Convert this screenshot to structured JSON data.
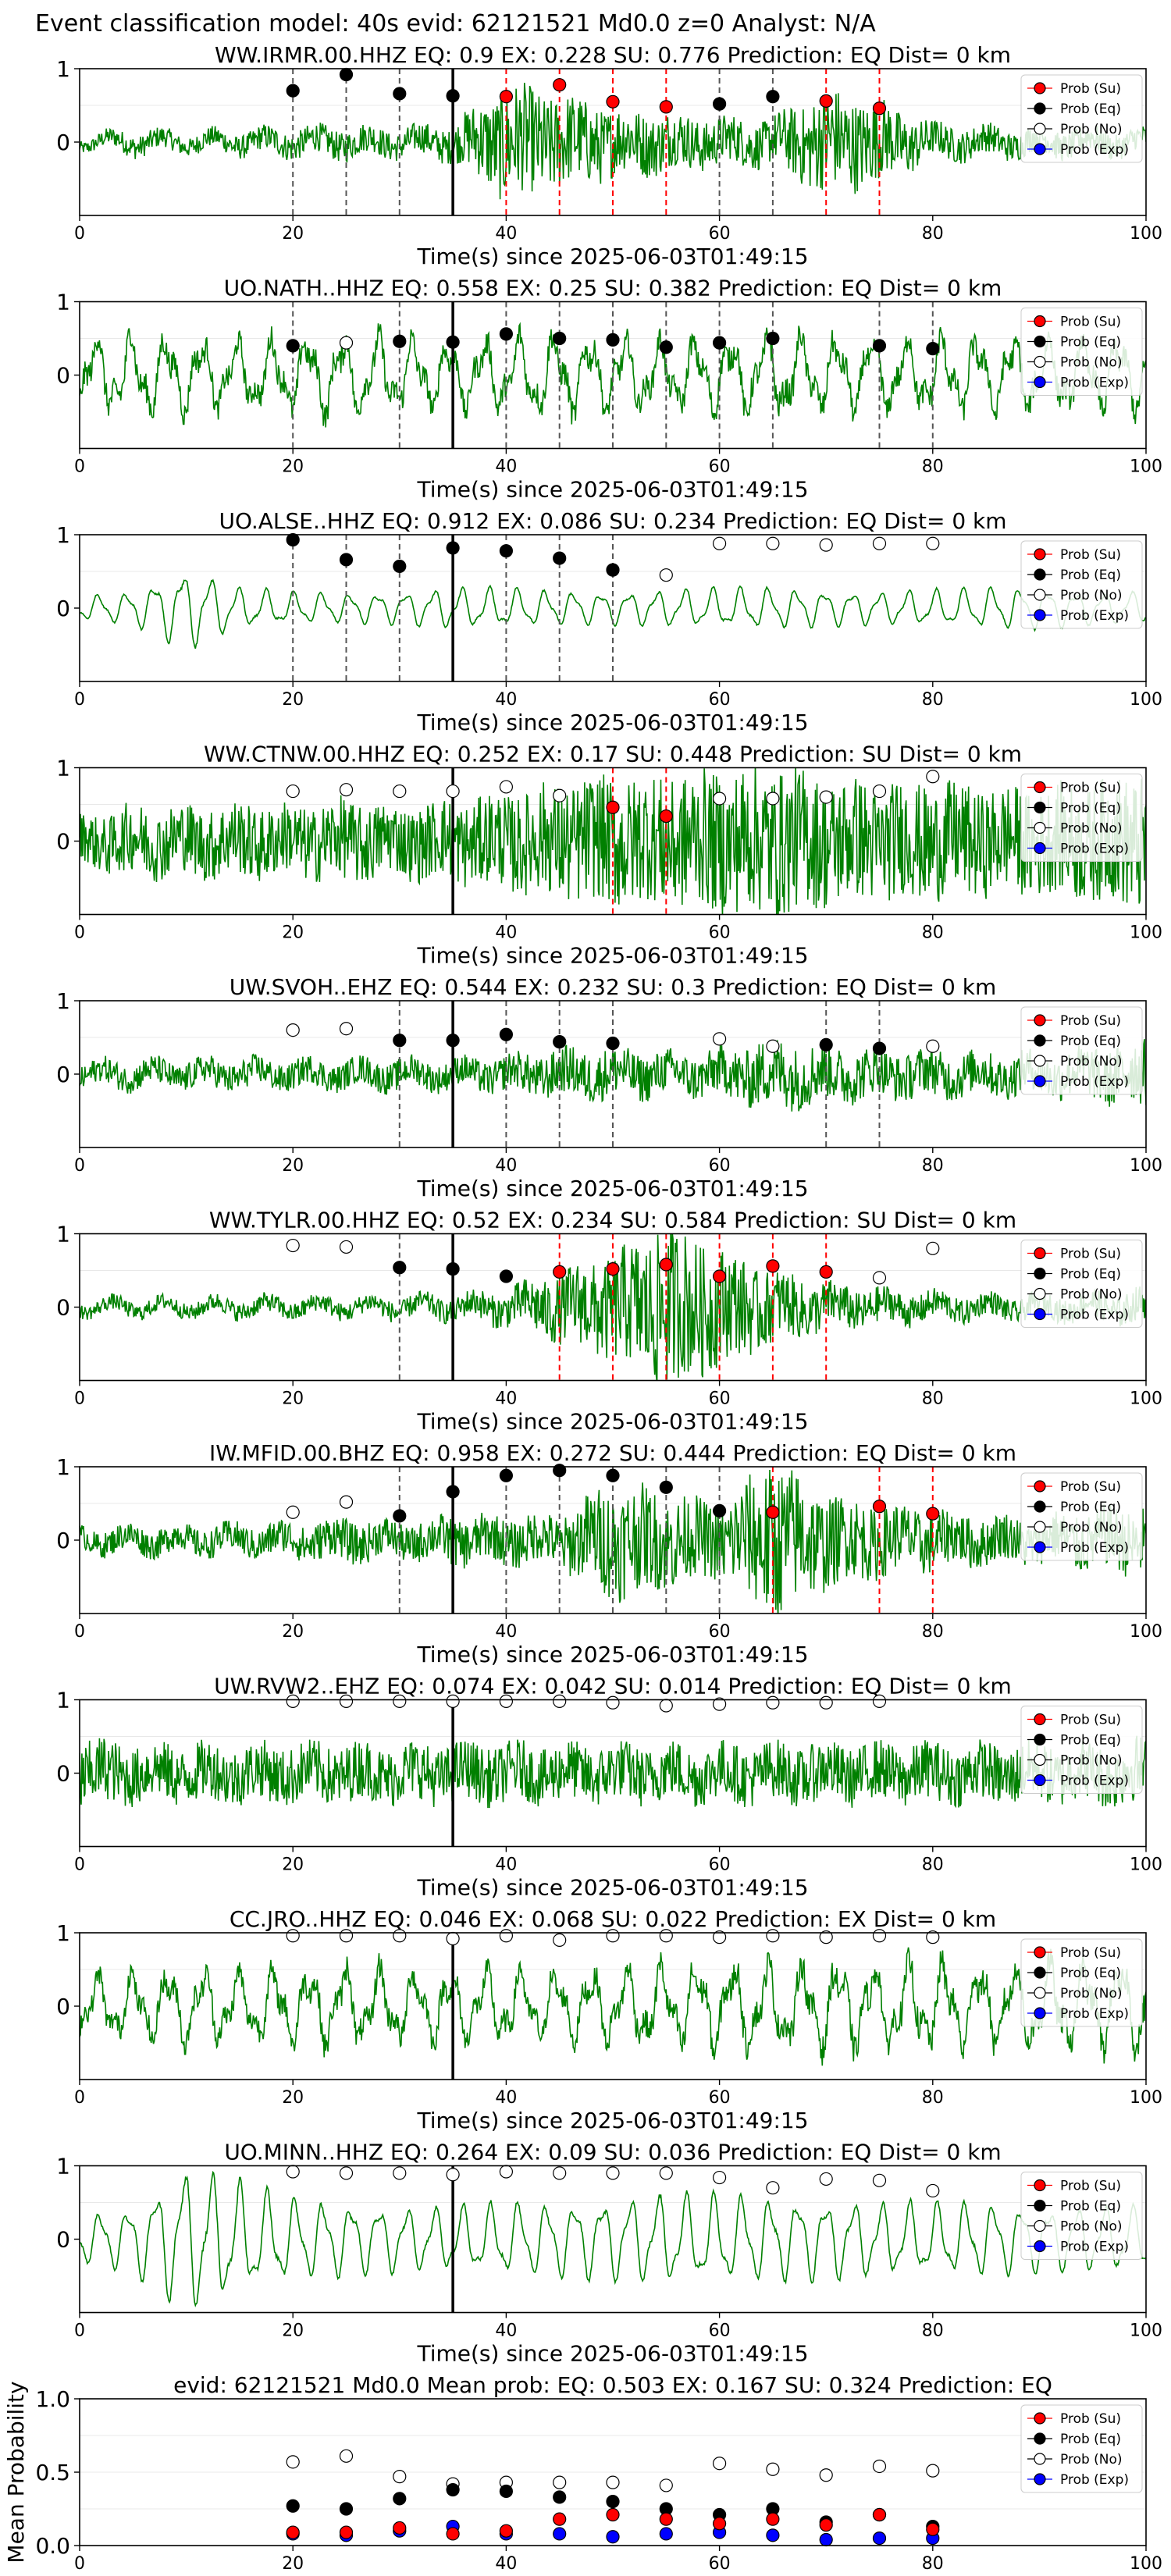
{
  "figure": {
    "suptitle": "Event classification model: 40s evid: 62121521 Md0.0 z=0 Analyst: N/A",
    "xlabel": "Time(s) since 2025-06-03T01:49:15",
    "colors": {
      "waveform": "#008000",
      "su": "#ff0000",
      "eq": "#000000",
      "no": "#ffffff",
      "exp": "#0000ff",
      "eq_line": "#555555",
      "su_line": "#ff0000",
      "pick_line": "#000000"
    }
  },
  "legend": [
    "Prob (Su)",
    "Prob (Eq)",
    "Prob (No)",
    "Prob (Exp)"
  ],
  "chart_data": [
    {
      "type": "line",
      "title": "WW.IRMR.00.HHZ   EQ: 0.9  EX: 0.228  SU: 0.776   Prediction: EQ    Dist= 0 km",
      "xlabel": "Time(s) since 2025-06-03T01:49:15",
      "xlim": [
        0,
        100
      ],
      "ylim": [
        -1,
        1
      ],
      "xticks": [
        "0",
        "20",
        "40",
        "60",
        "80",
        "100"
      ],
      "yticks": [
        "1",
        "0"
      ],
      "pick_time": 35,
      "waveform": {
        "style": "noisy",
        "amps": [
          0.05,
          0.1,
          0.08,
          0.1,
          0.12,
          0.13,
          0.12,
          0.15,
          0.5,
          0.4,
          0.3,
          0.25,
          0.2,
          0.2,
          0.45,
          0.35,
          0.15,
          0.13,
          0.12,
          0.12,
          0.1
        ]
      },
      "probs": {
        "t": [
          20,
          25,
          30,
          35,
          40,
          45,
          50,
          55,
          60,
          65,
          70,
          75
        ],
        "su": [
          null,
          null,
          null,
          null,
          0.62,
          0.78,
          0.55,
          0.48,
          null,
          null,
          0.56,
          0.46
        ],
        "eq": [
          0.7,
          0.92,
          0.66,
          0.63,
          null,
          null,
          null,
          null,
          0.52,
          0.62,
          null,
          null
        ]
      },
      "vlines_eq": [
        20,
        25,
        30,
        35,
        60,
        65
      ],
      "vlines_su": [
        40,
        45,
        50,
        55,
        70,
        75
      ]
    },
    {
      "type": "line",
      "title": "UO.NATH..HHZ   EQ: 0.558  EX: 0.25  SU: 0.382   Prediction: EQ    Dist= 0 km",
      "xlabel": "Time(s) since 2025-06-03T01:49:15",
      "xlim": [
        0,
        100
      ],
      "ylim": [
        -1,
        1
      ],
      "xticks": [
        "0",
        "20",
        "40",
        "60",
        "80",
        "100"
      ],
      "yticks": [
        "1",
        "0"
      ],
      "pick_time": 35,
      "waveform": {
        "style": "wavy",
        "amps": [
          0.5,
          0.55,
          0.5,
          0.45,
          0.5,
          0.55,
          0.5,
          0.45,
          0.5,
          0.55,
          0.5,
          0.45,
          0.5,
          0.55,
          0.5,
          0.5,
          0.5,
          0.5,
          0.5,
          0.45,
          0.5
        ]
      },
      "probs": {
        "t": [
          20,
          25,
          30,
          35,
          40,
          45,
          50,
          55,
          60,
          65,
          75,
          80
        ],
        "su": [
          null,
          null,
          null,
          null,
          null,
          null,
          null,
          null,
          null,
          null,
          null,
          null
        ],
        "eq": [
          0.4,
          null,
          0.46,
          0.45,
          0.56,
          0.5,
          0.48,
          0.38,
          0.44,
          0.5,
          0.4,
          0.36
        ],
        "no": [
          null,
          0.44,
          null,
          null,
          null,
          null,
          null,
          null,
          null,
          null,
          null,
          null
        ]
      },
      "vlines_eq": [
        20,
        30,
        40,
        45,
        50,
        55,
        60,
        65,
        75,
        80
      ],
      "vlines_su": []
    },
    {
      "type": "line",
      "title": "UO.ALSE..HHZ   EQ: 0.912  EX: 0.086  SU: 0.234   Prediction: EQ    Dist= 0 km",
      "xlabel": "Time(s) since 2025-06-03T01:49:15",
      "xlim": [
        0,
        100
      ],
      "ylim": [
        -1,
        1
      ],
      "xticks": [
        "0",
        "20",
        "40",
        "60",
        "80",
        "100"
      ],
      "yticks": [
        "1",
        "0"
      ],
      "pick_time": 35,
      "waveform": {
        "style": "smooth",
        "amps": [
          0.15,
          0.2,
          0.5,
          0.25,
          0.2,
          0.18,
          0.2,
          0.25,
          0.25,
          0.2,
          0.2,
          0.22,
          0.25,
          0.25,
          0.22,
          0.2,
          0.22,
          0.25,
          0.25,
          0.2,
          0.2
        ]
      },
      "probs": {
        "t": [
          20,
          25,
          30,
          35,
          40,
          45,
          50,
          55,
          60,
          65,
          70,
          75,
          80
        ],
        "eq": [
          0.93,
          0.66,
          0.57,
          0.82,
          0.78,
          0.68,
          0.52,
          null,
          null,
          null,
          null,
          null,
          null
        ],
        "no": [
          null,
          null,
          null,
          null,
          null,
          null,
          null,
          0.45,
          0.88,
          0.88,
          0.86,
          0.88,
          0.88
        ]
      },
      "vlines_eq": [
        20,
        25,
        30,
        35,
        40,
        45,
        50
      ],
      "vlines_su": []
    },
    {
      "type": "line",
      "title": "WW.CTNW.00.HHZ   EQ: 0.252  EX: 0.17  SU: 0.448   Prediction: SU    Dist= 0 km",
      "xlabel": "Time(s) since 2025-06-03T01:49:15",
      "xlim": [
        0,
        100
      ],
      "ylim": [
        -1,
        1
      ],
      "xticks": [
        "0",
        "20",
        "40",
        "60",
        "80",
        "100"
      ],
      "yticks": [
        "1",
        "0"
      ],
      "pick_time": 35,
      "waveform": {
        "style": "noisy",
        "amps": [
          0.2,
          0.3,
          0.3,
          0.32,
          0.3,
          0.35,
          0.3,
          0.35,
          0.4,
          0.5,
          0.55,
          0.55,
          0.6,
          0.65,
          0.55,
          0.5,
          0.5,
          0.45,
          0.45,
          0.5,
          0.6
        ]
      },
      "probs": {
        "t": [
          20,
          25,
          30,
          35,
          40,
          45,
          50,
          55,
          60,
          65,
          70,
          75,
          80
        ],
        "su": [
          null,
          null,
          null,
          null,
          null,
          null,
          0.46,
          0.34,
          null,
          null,
          null,
          null,
          null
        ],
        "no": [
          0.68,
          0.7,
          0.68,
          0.68,
          0.74,
          0.62,
          null,
          null,
          0.58,
          0.58,
          0.6,
          0.68,
          0.88
        ]
      },
      "vlines_eq": [],
      "vlines_su": [
        50,
        55
      ]
    },
    {
      "type": "line",
      "title": "UW.SVOH..EHZ   EQ: 0.544  EX: 0.232  SU: 0.3   Prediction: EQ    Dist= 0 km",
      "xlabel": "Time(s) since 2025-06-03T01:49:15",
      "xlim": [
        0,
        100
      ],
      "ylim": [
        -1,
        1
      ],
      "xticks": [
        "0",
        "20",
        "40",
        "60",
        "80",
        "100"
      ],
      "yticks": [
        "1",
        "0"
      ],
      "pick_time": 35,
      "waveform": {
        "style": "noisy",
        "amps": [
          0.1,
          0.12,
          0.12,
          0.13,
          0.12,
          0.12,
          0.13,
          0.12,
          0.15,
          0.2,
          0.22,
          0.18,
          0.2,
          0.3,
          0.25,
          0.2,
          0.2,
          0.18,
          0.18,
          0.22,
          0.3
        ]
      },
      "probs": {
        "t": [
          20,
          25,
          30,
          35,
          40,
          45,
          50,
          60,
          65,
          70,
          75,
          80
        ],
        "eq": [
          null,
          null,
          0.46,
          0.46,
          0.54,
          0.44,
          0.42,
          null,
          null,
          0.4,
          0.35,
          null
        ],
        "no": [
          0.6,
          0.62,
          null,
          null,
          null,
          null,
          null,
          0.48,
          0.38,
          null,
          null,
          0.38
        ]
      },
      "vlines_eq": [
        30,
        35,
        40,
        45,
        50,
        70,
        75
      ],
      "vlines_su": []
    },
    {
      "type": "line",
      "title": "WW.TYLR.00.HHZ   EQ: 0.52  EX: 0.234  SU: 0.584   Prediction: SU    Dist= 0 km",
      "xlabel": "Time(s) since 2025-06-03T01:49:15",
      "xlim": [
        0,
        100
      ],
      "ylim": [
        -1,
        1
      ],
      "xticks": [
        "0",
        "20",
        "40",
        "60",
        "80",
        "100"
      ],
      "yticks": [
        "1",
        "0"
      ],
      "pick_time": 35,
      "waveform": {
        "style": "noisy",
        "amps": [
          0.06,
          0.07,
          0.07,
          0.08,
          0.08,
          0.08,
          0.09,
          0.1,
          0.15,
          0.3,
          0.45,
          0.7,
          0.5,
          0.3,
          0.2,
          0.15,
          0.12,
          0.1,
          0.1,
          0.12,
          0.15
        ]
      },
      "probs": {
        "t": [
          20,
          25,
          30,
          35,
          40,
          45,
          50,
          55,
          60,
          65,
          70,
          75,
          80
        ],
        "su": [
          null,
          null,
          null,
          null,
          null,
          0.48,
          0.52,
          0.58,
          0.42,
          0.56,
          0.48,
          null,
          null
        ],
        "eq": [
          null,
          null,
          0.54,
          0.52,
          0.42,
          null,
          null,
          null,
          null,
          null,
          null,
          null,
          null
        ],
        "no": [
          0.84,
          0.82,
          null,
          null,
          null,
          null,
          null,
          null,
          null,
          null,
          null,
          0.4,
          0.8
        ]
      },
      "vlines_eq": [
        30,
        35
      ],
      "vlines_su": [
        45,
        50,
        55,
        60,
        65,
        70
      ]
    },
    {
      "type": "line",
      "title": "IW.MFID.00.BHZ   EQ: 0.958  EX: 0.272  SU: 0.444   Prediction: EQ    Dist= 0 km",
      "xlabel": "Time(s) since 2025-06-03T01:49:15",
      "xlim": [
        0,
        100
      ],
      "ylim": [
        -1,
        1
      ],
      "xticks": [
        "0",
        "20",
        "40",
        "60",
        "80",
        "100"
      ],
      "yticks": [
        "1",
        "0"
      ],
      "pick_time": 35,
      "waveform": {
        "style": "noisy",
        "amps": [
          0.1,
          0.12,
          0.12,
          0.13,
          0.15,
          0.18,
          0.15,
          0.2,
          0.2,
          0.22,
          0.5,
          0.4,
          0.3,
          0.7,
          0.4,
          0.3,
          0.25,
          0.2,
          0.2,
          0.25,
          0.3
        ]
      },
      "probs": {
        "t": [
          20,
          25,
          30,
          35,
          40,
          45,
          50,
          55,
          60,
          65,
          75,
          80
        ],
        "su": [
          null,
          null,
          null,
          null,
          null,
          null,
          null,
          null,
          null,
          0.38,
          0.46,
          0.36
        ],
        "eq": [
          null,
          null,
          0.33,
          0.66,
          0.88,
          0.95,
          0.88,
          0.72,
          0.4,
          null,
          null,
          null
        ],
        "no": [
          0.38,
          0.52,
          null,
          null,
          null,
          null,
          null,
          null,
          null,
          null,
          null,
          null
        ]
      },
      "vlines_eq": [
        30,
        35,
        40,
        45,
        50,
        55,
        60
      ],
      "vlines_su": [
        65,
        75,
        80
      ]
    },
    {
      "type": "line",
      "title": "UW.RVW2..EHZ   EQ: 0.074  EX: 0.042  SU: 0.014   Prediction: EQ    Dist= 0 km",
      "xlabel": "Time(s) since 2025-06-03T01:49:15",
      "xlim": [
        0,
        100
      ],
      "ylim": [
        -1,
        1
      ],
      "xticks": [
        "0",
        "20",
        "40",
        "60",
        "80",
        "100"
      ],
      "yticks": [
        "1",
        "0"
      ],
      "pick_time": 35,
      "waveform": {
        "style": "noisy",
        "amps": [
          0.3,
          0.25,
          0.25,
          0.25,
          0.25,
          0.25,
          0.25,
          0.25,
          0.25,
          0.25,
          0.25,
          0.25,
          0.25,
          0.25,
          0.25,
          0.25,
          0.25,
          0.25,
          0.25,
          0.25,
          0.3
        ]
      },
      "probs": {
        "t": [
          20,
          25,
          30,
          35,
          40,
          45,
          50,
          55,
          60,
          65,
          70,
          75
        ],
        "no": [
          0.98,
          0.98,
          0.98,
          0.98,
          0.98,
          0.98,
          0.96,
          0.92,
          0.94,
          0.96,
          0.96,
          0.98
        ]
      },
      "vlines_eq": [],
      "vlines_su": []
    },
    {
      "type": "line",
      "title": "CC.JRO..HHZ   EQ: 0.046  EX: 0.068  SU: 0.022   Prediction: EX    Dist= 0 km",
      "xlabel": "Time(s) since 2025-06-03T01:49:15",
      "xlim": [
        0,
        100
      ],
      "ylim": [
        -1,
        1
      ],
      "xticks": [
        "0",
        "20",
        "40",
        "60",
        "80",
        "100"
      ],
      "yticks": [
        "1",
        "0"
      ],
      "pick_time": 35,
      "waveform": {
        "style": "wavy",
        "amps": [
          0.4,
          0.45,
          0.5,
          0.45,
          0.5,
          0.55,
          0.5,
          0.45,
          0.5,
          0.45,
          0.5,
          0.55,
          0.6,
          0.55,
          0.6,
          0.55,
          0.6,
          0.55,
          0.6,
          0.55,
          0.6
        ]
      },
      "probs": {
        "t": [
          20,
          25,
          30,
          35,
          40,
          45,
          50,
          55,
          60,
          65,
          70,
          75,
          80
        ],
        "no": [
          0.96,
          0.96,
          0.96,
          0.92,
          0.96,
          0.9,
          0.96,
          0.96,
          0.94,
          0.96,
          0.94,
          0.96,
          0.94
        ]
      },
      "vlines_eq": [],
      "vlines_su": []
    },
    {
      "type": "line",
      "title": "UO.MINN..HHZ   EQ: 0.264  EX: 0.09  SU: 0.036   Prediction: EQ    Dist= 0 km",
      "xlabel": "Time(s) since 2025-06-03T01:49:15",
      "xlim": [
        0,
        100
      ],
      "ylim": [
        -1,
        1
      ],
      "xticks": [
        "0",
        "20",
        "40",
        "60",
        "80",
        "100"
      ],
      "yticks": [
        "1",
        "0"
      ],
      "pick_time": 35,
      "waveform": {
        "style": "smooth",
        "amps": [
          0.3,
          0.4,
          0.9,
          0.7,
          0.5,
          0.45,
          0.4,
          0.4,
          0.45,
          0.45,
          0.5,
          0.55,
          0.55,
          0.5,
          0.5,
          0.45,
          0.45,
          0.45,
          0.4,
          0.4,
          0.4
        ]
      },
      "probs": {
        "t": [
          20,
          25,
          30,
          35,
          40,
          45,
          50,
          55,
          60,
          65,
          70,
          75,
          80
        ],
        "no": [
          0.92,
          0.9,
          0.9,
          0.88,
          0.92,
          0.9,
          0.9,
          0.9,
          0.84,
          0.7,
          0.82,
          0.8,
          0.66
        ]
      },
      "vlines_eq": [],
      "vlines_su": []
    },
    {
      "type": "scatter",
      "title": "evid: 62121521  Md0.0   Mean prob:   EQ: 0.503  EX: 0.167  SU: 0.324   Prediction: EQ",
      "xlabel": "",
      "ylabel": "Mean Probability",
      "xlim": [
        0,
        100
      ],
      "ylim": [
        0,
        1
      ],
      "xticks": [
        "0",
        "20",
        "40",
        "60",
        "80",
        "100"
      ],
      "yticks": [
        "0.0",
        "0.5",
        "1.0"
      ],
      "probs": {
        "t": [
          20,
          25,
          30,
          35,
          40,
          45,
          50,
          55,
          60,
          65,
          70,
          75,
          80
        ],
        "no": [
          0.57,
          0.61,
          0.47,
          0.42,
          0.43,
          0.43,
          0.43,
          0.41,
          0.56,
          0.52,
          0.48,
          0.54,
          0.51
        ],
        "eq": [
          0.27,
          0.25,
          0.32,
          0.38,
          0.37,
          0.33,
          0.3,
          0.25,
          0.21,
          0.25,
          0.16,
          0.21,
          0.13
        ],
        "su": [
          0.09,
          0.09,
          0.12,
          0.08,
          0.1,
          0.18,
          0.21,
          0.18,
          0.15,
          0.18,
          0.14,
          0.21,
          0.11
        ],
        "exp": [
          0.08,
          0.07,
          0.1,
          0.13,
          0.08,
          0.08,
          0.06,
          0.08,
          0.09,
          0.07,
          0.04,
          0.05,
          0.05
        ]
      }
    }
  ]
}
